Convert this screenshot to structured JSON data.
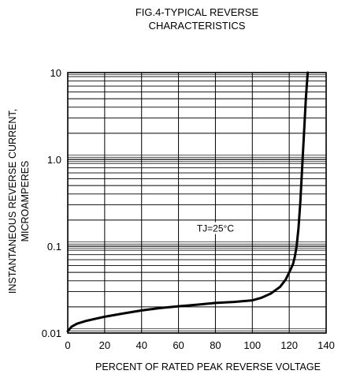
{
  "chart_data": {
    "type": "line",
    "title_lines": [
      "FIG.4-TYPICAL REVERSE",
      "CHARACTERISTICS"
    ],
    "xlabel": "PERCENT OF RATED PEAK REVERSE VOLTAGE",
    "ylabel_lines": [
      "INSTANTANEOUS REVERSE CURRENT,",
      "MICROAMPERES"
    ],
    "x_scale": "linear",
    "y_scale": "log",
    "xlim": [
      0,
      140
    ],
    "ylim": [
      0.01,
      10
    ],
    "x_ticks": [
      0,
      20,
      40,
      60,
      80,
      100,
      120,
      140
    ],
    "x_tick_labels": [
      "0",
      "20",
      "40",
      "60",
      "80",
      "100",
      "120",
      "140"
    ],
    "y_ticks": [
      0.01,
      0.1,
      1,
      10
    ],
    "y_tick_labels": [
      "0.01",
      "0.1",
      "1.0",
      "10"
    ],
    "grid": true,
    "annotation": "TJ=25°C",
    "series": [
      {
        "x": [
          0,
          2,
          5,
          10,
          15,
          20,
          30,
          40,
          50,
          60,
          70,
          80,
          90,
          100,
          105,
          110,
          115,
          118,
          120,
          122,
          123,
          124,
          125,
          126,
          127,
          128,
          129,
          130
        ],
        "y": [
          0.0105,
          0.0118,
          0.0128,
          0.0138,
          0.0146,
          0.0154,
          0.0168,
          0.0182,
          0.0194,
          0.0203,
          0.0212,
          0.0222,
          0.0228,
          0.0238,
          0.0255,
          0.0285,
          0.034,
          0.041,
          0.05,
          0.062,
          0.075,
          0.1,
          0.16,
          0.32,
          0.8,
          2.0,
          5.0,
          10.0
        ]
      }
    ]
  }
}
